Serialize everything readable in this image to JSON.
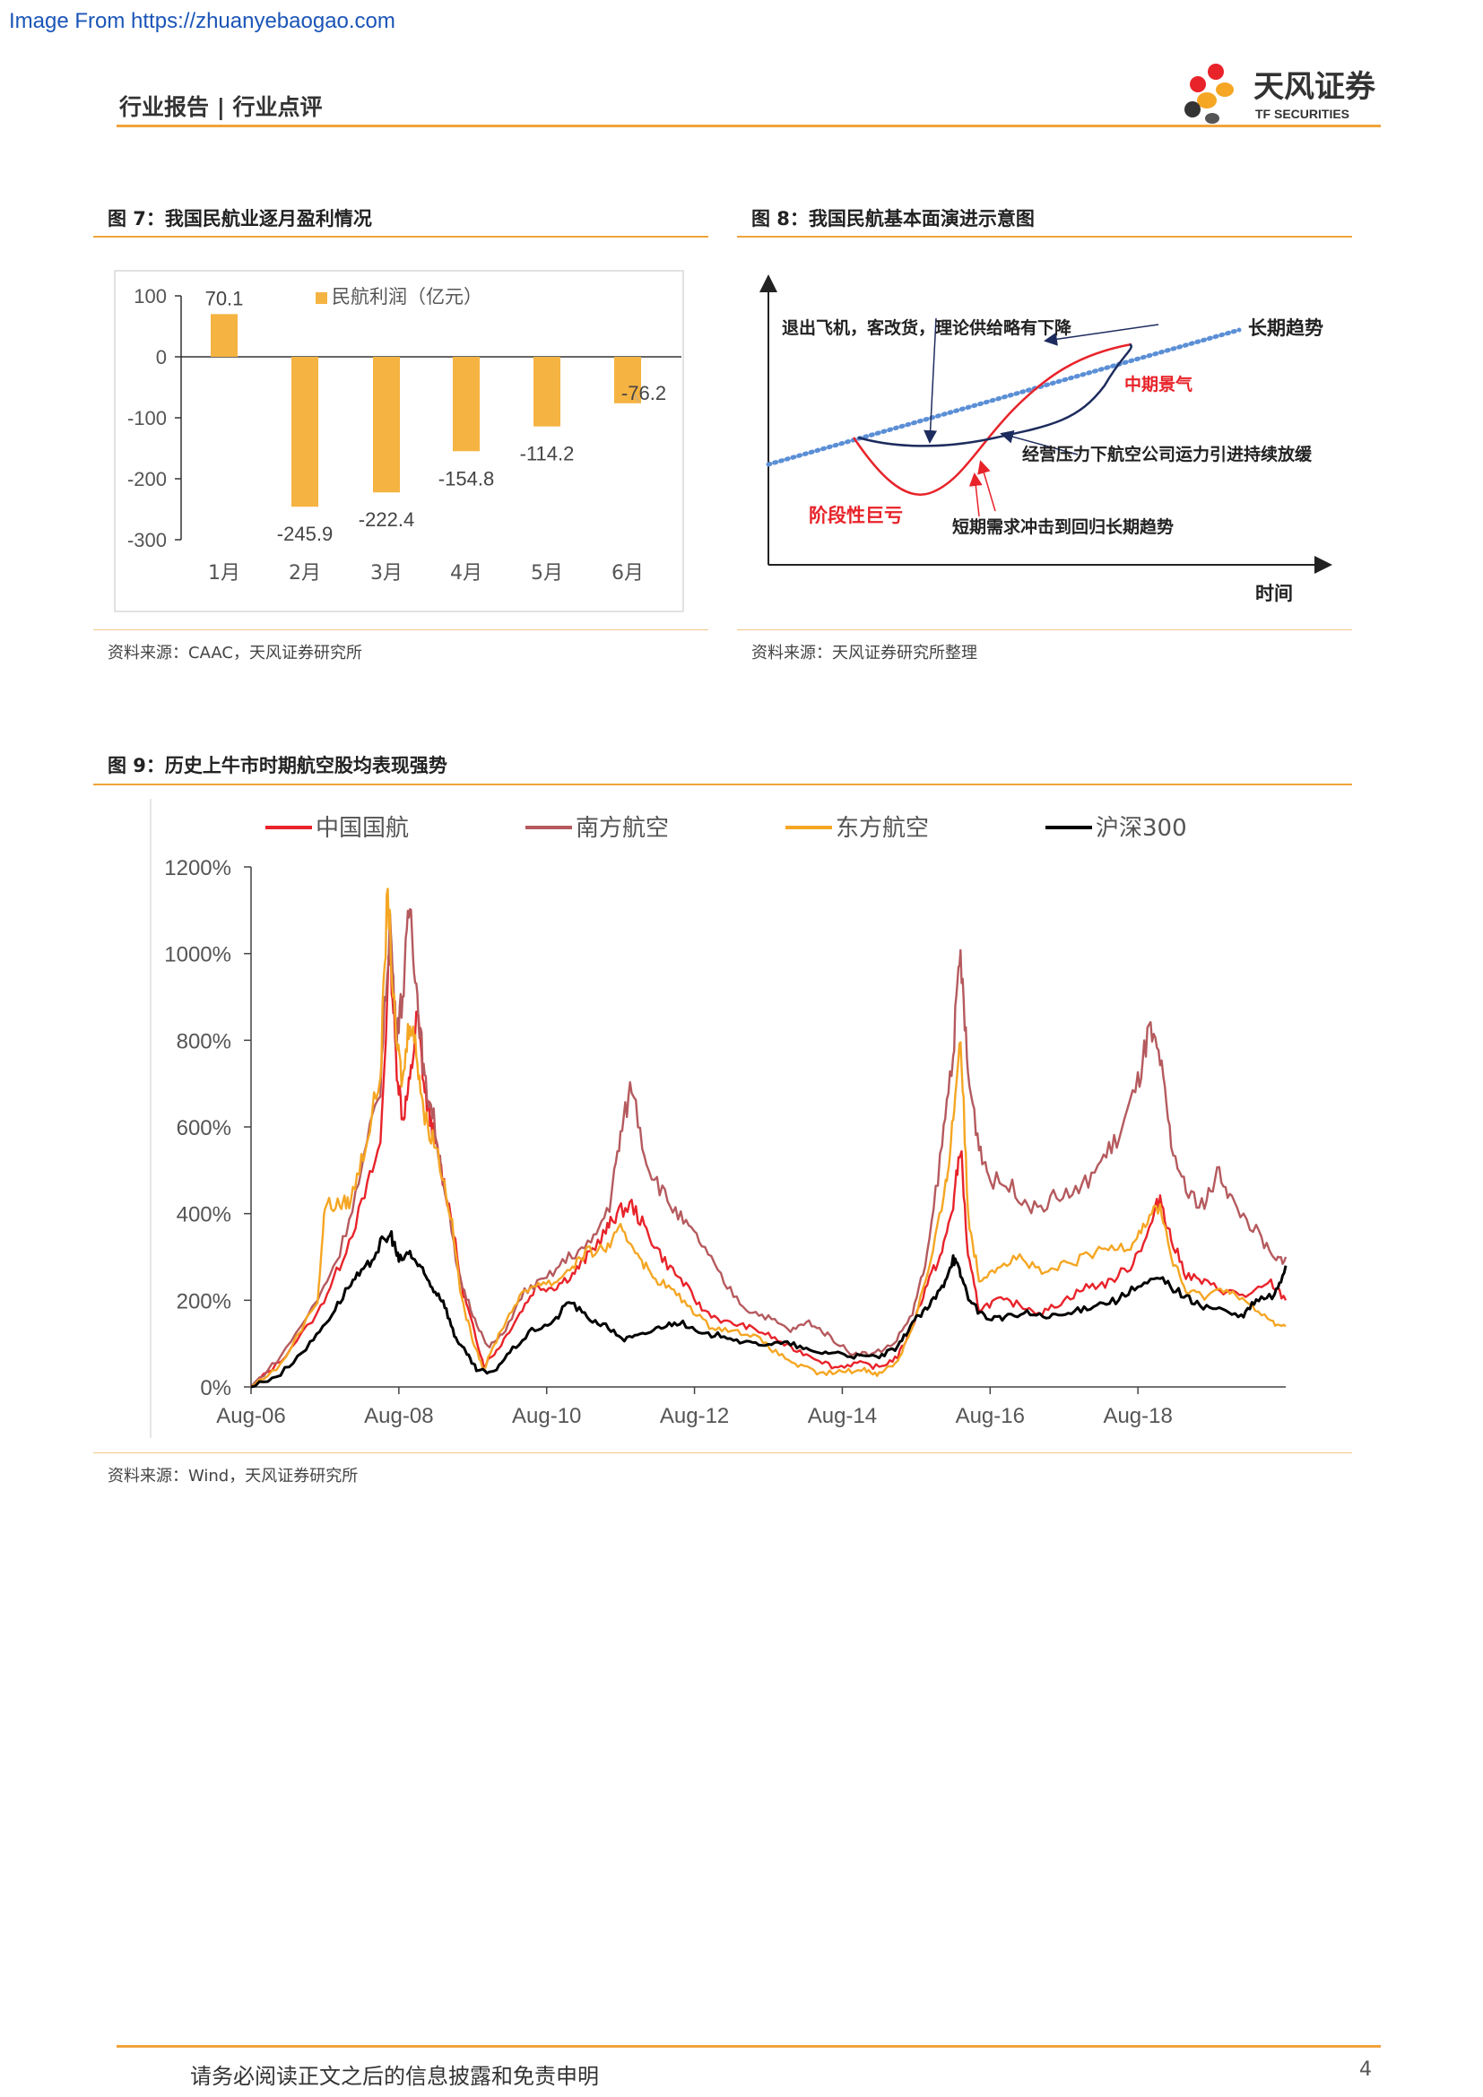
{
  "watermark": "Image From https://zhuanyebaogao.com",
  "header": {
    "title": "行业报告 | 行业点评",
    "logo_cn": "天风证券",
    "logo_en": "TF SECURITIES"
  },
  "figure7": {
    "title": "图 7：我国民航业逐月盈利情况",
    "source": "资料来源：CAAC，天风证券研究所",
    "chart_data": {
      "type": "bar",
      "categories": [
        "1月",
        "2月",
        "3月",
        "4月",
        "5月",
        "6月"
      ],
      "series": [
        {
          "name": "民航利润（亿元）",
          "values": [
            70.1,
            -245.9,
            -222.4,
            -154.8,
            -114.2,
            -76.2
          ]
        }
      ],
      "data_labels": [
        "70.1",
        "-245.9",
        "-222.4",
        "-154.8",
        "-114.2",
        "-76.2"
      ],
      "y_ticks": [
        100,
        0,
        -100,
        -200,
        -300
      ],
      "ylim": [
        -300,
        100
      ],
      "legend_position": "top",
      "grid": false,
      "colors": {
        "bar": "#f5b342"
      }
    }
  },
  "figure8": {
    "title": "图 8：我国民航基本面演进示意图",
    "source": "资料来源：天风证券研究所整理",
    "labels": {
      "retire": "退出飞机，客改货，理论供给略有下降",
      "long_trend": "长期趋势",
      "mid_boom": "中期景气",
      "pressure": "经营压力下航空公司运力引进持续放缓",
      "loss": "阶段性巨亏",
      "shock": "短期需求冲击到回归长期趋势",
      "x_axis": "时间"
    },
    "colors": {
      "trend": "#5b8fd6",
      "red_curve": "#e8232a",
      "navy_curve": "#1d2c5e",
      "red_text": "#e8232a"
    }
  },
  "figure9": {
    "title": "图 9：历史上牛市时期航空股均表现强势",
    "source": "资料来源：Wind，天风证券研究所",
    "chart_data": {
      "type": "line",
      "y_ticks": [
        "0%",
        "200%",
        "400%",
        "600%",
        "800%",
        "1000%",
        "1200%"
      ],
      "x_ticks": [
        "Aug-06",
        "Aug-08",
        "Aug-10",
        "Aug-12",
        "Aug-14",
        "Aug-16",
        "Aug-18"
      ],
      "ylim": [
        0,
        1200
      ],
      "legend_position": "top",
      "grid": false,
      "series": [
        {
          "name": "中国国航",
          "color": "#e8232a",
          "points": [
            [
              0,
              0
            ],
            [
              0.4,
              60
            ],
            [
              0.9,
              170
            ],
            [
              1.2,
              280
            ],
            [
              1.5,
              420
            ],
            [
              1.75,
              560
            ],
            [
              1.88,
              1020
            ],
            [
              1.96,
              760
            ],
            [
              2.05,
              620
            ],
            [
              2.15,
              700
            ],
            [
              2.25,
              860
            ],
            [
              2.35,
              680
            ],
            [
              2.45,
              600
            ],
            [
              2.55,
              520
            ],
            [
              2.7,
              400
            ],
            [
              2.85,
              230
            ],
            [
              3.0,
              140
            ],
            [
              3.15,
              50
            ],
            [
              3.35,
              90
            ],
            [
              3.6,
              160
            ],
            [
              3.85,
              230
            ],
            [
              4.1,
              230
            ],
            [
              4.35,
              260
            ],
            [
              4.55,
              300
            ],
            [
              4.8,
              360
            ],
            [
              4.95,
              400
            ],
            [
              5.15,
              420
            ],
            [
              5.35,
              360
            ],
            [
              5.6,
              290
            ],
            [
              5.85,
              240
            ],
            [
              6.1,
              180
            ],
            [
              6.4,
              150
            ],
            [
              6.7,
              140
            ],
            [
              7.0,
              120
            ],
            [
              7.3,
              90
            ],
            [
              7.6,
              70
            ],
            [
              7.9,
              45
            ],
            [
              8.2,
              55
            ],
            [
              8.5,
              45
            ],
            [
              8.75,
              70
            ],
            [
              8.95,
              140
            ],
            [
              9.15,
              240
            ],
            [
              9.35,
              310
            ],
            [
              9.5,
              420
            ],
            [
              9.6,
              560
            ],
            [
              9.7,
              300
            ],
            [
              9.85,
              180
            ],
            [
              10.1,
              200
            ],
            [
              10.4,
              190
            ],
            [
              10.7,
              170
            ],
            [
              11.0,
              200
            ],
            [
              11.3,
              230
            ],
            [
              11.6,
              240
            ],
            [
              11.9,
              280
            ],
            [
              12.15,
              360
            ],
            [
              12.3,
              440
            ],
            [
              12.45,
              340
            ],
            [
              12.65,
              260
            ],
            [
              12.9,
              240
            ],
            [
              13.2,
              220
            ],
            [
              13.5,
              210
            ],
            [
              13.8,
              240
            ],
            [
              14.0,
              200
            ]
          ]
        },
        {
          "name": "南方航空",
          "color": "#b55a5e",
          "points": [
            [
              0,
              0
            ],
            [
              0.4,
              70
            ],
            [
              0.9,
              200
            ],
            [
              1.2,
              310
            ],
            [
              1.5,
              500
            ],
            [
              1.75,
              700
            ],
            [
              1.88,
              1080
            ],
            [
              1.96,
              820
            ],
            [
              2.05,
              900
            ],
            [
              2.15,
              1120
            ],
            [
              2.25,
              900
            ],
            [
              2.35,
              700
            ],
            [
              2.45,
              640
            ],
            [
              2.6,
              480
            ],
            [
              2.8,
              260
            ],
            [
              3.0,
              170
            ],
            [
              3.2,
              90
            ],
            [
              3.4,
              120
            ],
            [
              3.7,
              220
            ],
            [
              4.0,
              250
            ],
            [
              4.3,
              300
            ],
            [
              4.6,
              330
            ],
            [
              4.85,
              420
            ],
            [
              5.0,
              580
            ],
            [
              5.15,
              700
            ],
            [
              5.35,
              520
            ],
            [
              5.6,
              440
            ],
            [
              5.85,
              380
            ],
            [
              6.1,
              330
            ],
            [
              6.4,
              240
            ],
            [
              6.7,
              180
            ],
            [
              7.0,
              160
            ],
            [
              7.3,
              130
            ],
            [
              7.55,
              150
            ],
            [
              7.8,
              120
            ],
            [
              8.1,
              80
            ],
            [
              8.4,
              75
            ],
            [
              8.7,
              100
            ],
            [
              8.95,
              170
            ],
            [
              9.15,
              300
            ],
            [
              9.35,
              560
            ],
            [
              9.5,
              780
            ],
            [
              9.6,
              1000
            ],
            [
              9.7,
              720
            ],
            [
              9.85,
              560
            ],
            [
              10.0,
              480
            ],
            [
              10.3,
              460
            ],
            [
              10.6,
              410
            ],
            [
              10.9,
              440
            ],
            [
              11.2,
              450
            ],
            [
              11.5,
              520
            ],
            [
              11.75,
              580
            ],
            [
              12.0,
              700
            ],
            [
              12.15,
              820
            ],
            [
              12.3,
              750
            ],
            [
              12.45,
              560
            ],
            [
              12.65,
              450
            ],
            [
              12.9,
              420
            ],
            [
              13.1,
              500
            ],
            [
              13.3,
              420
            ],
            [
              13.6,
              360
            ],
            [
              13.85,
              290
            ],
            [
              14.0,
              300
            ]
          ]
        },
        {
          "name": "东方航空",
          "color": "#f5a623",
          "points": [
            [
              0,
              0
            ],
            [
              0.4,
              50
            ],
            [
              0.9,
              200
            ],
            [
              1.0,
              420
            ],
            [
              1.2,
              420
            ],
            [
              1.35,
              430
            ],
            [
              1.55,
              560
            ],
            [
              1.75,
              720
            ],
            [
              1.85,
              1150
            ],
            [
              1.95,
              820
            ],
            [
              2.05,
              700
            ],
            [
              2.15,
              860
            ],
            [
              2.25,
              760
            ],
            [
              2.35,
              620
            ],
            [
              2.5,
              560
            ],
            [
              2.7,
              400
            ],
            [
              2.85,
              200
            ],
            [
              3.0,
              110
            ],
            [
              3.15,
              40
            ],
            [
              3.35,
              120
            ],
            [
              3.6,
              200
            ],
            [
              3.85,
              240
            ],
            [
              4.1,
              240
            ],
            [
              4.35,
              280
            ],
            [
              4.55,
              310
            ],
            [
              4.8,
              320
            ],
            [
              5.0,
              360
            ],
            [
              5.2,
              320
            ],
            [
              5.4,
              260
            ],
            [
              5.65,
              230
            ],
            [
              5.9,
              190
            ],
            [
              6.2,
              140
            ],
            [
              6.5,
              130
            ],
            [
              6.8,
              120
            ],
            [
              7.1,
              80
            ],
            [
              7.4,
              50
            ],
            [
              7.7,
              30
            ],
            [
              8.0,
              35
            ],
            [
              8.3,
              40
            ],
            [
              8.5,
              30
            ],
            [
              8.75,
              60
            ],
            [
              8.95,
              140
            ],
            [
              9.2,
              290
            ],
            [
              9.4,
              460
            ],
            [
              9.5,
              620
            ],
            [
              9.6,
              820
            ],
            [
              9.7,
              400
            ],
            [
              9.85,
              250
            ],
            [
              10.1,
              280
            ],
            [
              10.4,
              300
            ],
            [
              10.7,
              260
            ],
            [
              11.0,
              280
            ],
            [
              11.3,
              300
            ],
            [
              11.6,
              320
            ],
            [
              11.9,
              330
            ],
            [
              12.1,
              380
            ],
            [
              12.3,
              420
            ],
            [
              12.45,
              300
            ],
            [
              12.65,
              220
            ],
            [
              12.9,
              210
            ],
            [
              13.2,
              230
            ],
            [
              13.5,
              190
            ],
            [
              13.8,
              150
            ],
            [
              14.0,
              140
            ]
          ]
        },
        {
          "name": "沪深300",
          "color": "#000000",
          "points": [
            [
              0,
              0
            ],
            [
              0.4,
              30
            ],
            [
              0.8,
              100
            ],
            [
              1.1,
              170
            ],
            [
              1.35,
              240
            ],
            [
              1.55,
              270
            ],
            [
              1.75,
              330
            ],
            [
              1.9,
              350
            ],
            [
              2.0,
              290
            ],
            [
              2.15,
              310
            ],
            [
              2.3,
              270
            ],
            [
              2.45,
              230
            ],
            [
              2.6,
              200
            ],
            [
              2.75,
              120
            ],
            [
              2.9,
              80
            ],
            [
              3.05,
              40
            ],
            [
              3.25,
              30
            ],
            [
              3.5,
              80
            ],
            [
              3.8,
              130
            ],
            [
              4.1,
              150
            ],
            [
              4.3,
              200
            ],
            [
              4.55,
              160
            ],
            [
              4.8,
              140
            ],
            [
              5.05,
              110
            ],
            [
              5.3,
              120
            ],
            [
              5.55,
              140
            ],
            [
              5.8,
              150
            ],
            [
              6.1,
              120
            ],
            [
              6.4,
              120
            ],
            [
              6.7,
              100
            ],
            [
              7.0,
              100
            ],
            [
              7.3,
              100
            ],
            [
              7.6,
              80
            ],
            [
              7.9,
              80
            ],
            [
              8.2,
              70
            ],
            [
              8.5,
              70
            ],
            [
              8.75,
              90
            ],
            [
              8.95,
              150
            ],
            [
              9.15,
              180
            ],
            [
              9.35,
              230
            ],
            [
              9.5,
              300
            ],
            [
              9.6,
              260
            ],
            [
              9.75,
              190
            ],
            [
              9.95,
              160
            ],
            [
              10.2,
              160
            ],
            [
              10.5,
              170
            ],
            [
              10.8,
              160
            ],
            [
              11.1,
              170
            ],
            [
              11.4,
              190
            ],
            [
              11.7,
              200
            ],
            [
              12.0,
              230
            ],
            [
              12.3,
              250
            ],
            [
              12.55,
              220
            ],
            [
              12.8,
              190
            ],
            [
              13.1,
              180
            ],
            [
              13.4,
              160
            ],
            [
              13.6,
              200
            ],
            [
              13.85,
              210
            ],
            [
              14.0,
              280
            ]
          ]
        }
      ]
    }
  },
  "footer": {
    "disclaimer": "请务必阅读正文之后的信息披露和免责申明",
    "page_number": "4"
  }
}
